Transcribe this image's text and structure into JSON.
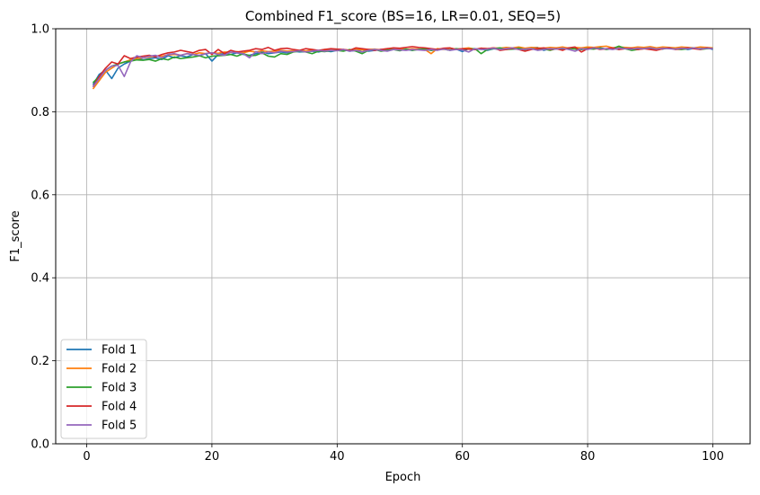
{
  "chart_data": {
    "type": "line",
    "title": "Combined F1_score (BS=16, LR=0.01, SEQ=5)",
    "xlabel": "Epoch",
    "ylabel": "F1_score",
    "xlim": [
      -4.95,
      105.95
    ],
    "ylim": [
      0.0,
      1.0
    ],
    "xticks": [
      0,
      20,
      40,
      60,
      80,
      100
    ],
    "yticks": [
      0.0,
      0.2,
      0.4,
      0.6,
      0.8,
      1.0
    ],
    "xtick_labels": [
      "0",
      "20",
      "40",
      "60",
      "80",
      "100"
    ],
    "ytick_labels": [
      "0.0",
      "0.2",
      "0.4",
      "0.6",
      "0.8",
      "1.0"
    ],
    "grid": true,
    "legend_position": "lower-left",
    "x": [
      1,
      2,
      3,
      4,
      5,
      6,
      7,
      8,
      9,
      10,
      11,
      12,
      13,
      14,
      15,
      16,
      17,
      18,
      19,
      20,
      21,
      22,
      23,
      24,
      25,
      26,
      27,
      28,
      29,
      30,
      31,
      32,
      33,
      34,
      35,
      36,
      37,
      38,
      39,
      40,
      41,
      42,
      43,
      44,
      45,
      46,
      47,
      48,
      49,
      50,
      51,
      52,
      53,
      54,
      55,
      56,
      57,
      58,
      59,
      60,
      61,
      62,
      63,
      64,
      65,
      66,
      67,
      68,
      69,
      70,
      71,
      72,
      73,
      74,
      75,
      76,
      77,
      78,
      79,
      80,
      81,
      82,
      83,
      84,
      85,
      86,
      87,
      88,
      89,
      90,
      91,
      92,
      93,
      94,
      95,
      96,
      97,
      98,
      99,
      100
    ],
    "series": [
      {
        "name": "Fold 1",
        "color": "#1f77b4",
        "values": [
          0.865,
          0.89,
          0.9,
          0.88,
          0.905,
          0.915,
          0.922,
          0.93,
          0.925,
          0.928,
          0.93,
          0.926,
          0.935,
          0.93,
          0.935,
          0.932,
          0.938,
          0.935,
          0.94,
          0.922,
          0.938,
          0.94,
          0.938,
          0.942,
          0.938,
          0.936,
          0.94,
          0.944,
          0.94,
          0.942,
          0.944,
          0.942,
          0.946,
          0.944,
          0.945,
          0.946,
          0.944,
          0.947,
          0.945,
          0.948,
          0.95,
          0.946,
          0.948,
          0.949,
          0.946,
          0.948,
          0.95,
          0.948,
          0.95,
          0.949,
          0.95,
          0.948,
          0.951,
          0.95,
          0.948,
          0.95,
          0.952,
          0.949,
          0.951,
          0.945,
          0.952,
          0.95,
          0.951,
          0.948,
          0.952,
          0.95,
          0.953,
          0.951,
          0.952,
          0.95,
          0.954,
          0.955,
          0.948,
          0.952,
          0.953,
          0.95,
          0.954,
          0.952,
          0.95,
          0.953,
          0.952,
          0.954,
          0.951,
          0.953,
          0.95,
          0.955,
          0.952,
          0.95,
          0.954,
          0.952,
          0.953,
          0.951,
          0.955,
          0.952,
          0.954,
          0.95,
          0.953,
          0.952,
          0.955,
          0.95
        ]
      },
      {
        "name": "Fold 2",
        "color": "#ff7f0e",
        "values": [
          0.855,
          0.875,
          0.895,
          0.905,
          0.915,
          0.92,
          0.925,
          0.928,
          0.93,
          0.932,
          0.935,
          0.934,
          0.937,
          0.938,
          0.936,
          0.94,
          0.938,
          0.942,
          0.94,
          0.942,
          0.941,
          0.944,
          0.943,
          0.945,
          0.942,
          0.946,
          0.944,
          0.947,
          0.945,
          0.946,
          0.948,
          0.946,
          0.947,
          0.948,
          0.946,
          0.949,
          0.947,
          0.95,
          0.948,
          0.949,
          0.95,
          0.948,
          0.951,
          0.949,
          0.95,
          0.951,
          0.949,
          0.952,
          0.95,
          0.951,
          0.95,
          0.952,
          0.951,
          0.95,
          0.94,
          0.952,
          0.95,
          0.953,
          0.951,
          0.952,
          0.954,
          0.951,
          0.953,
          0.952,
          0.954,
          0.953,
          0.955,
          0.954,
          0.956,
          0.953,
          0.955,
          0.954,
          0.953,
          0.955,
          0.954,
          0.956,
          0.953,
          0.955,
          0.954,
          0.956,
          0.955,
          0.957,
          0.958,
          0.954,
          0.956,
          0.955,
          0.954,
          0.956,
          0.955,
          0.957,
          0.954,
          0.956,
          0.955,
          0.954,
          0.956,
          0.955,
          0.954,
          0.956,
          0.955,
          0.954
        ]
      },
      {
        "name": "Fold 3",
        "color": "#2ca02c",
        "values": [
          0.87,
          0.885,
          0.9,
          0.91,
          0.915,
          0.92,
          0.922,
          0.925,
          0.924,
          0.926,
          0.922,
          0.928,
          0.925,
          0.932,
          0.928,
          0.93,
          0.932,
          0.935,
          0.93,
          0.934,
          0.935,
          0.936,
          0.938,
          0.934,
          0.94,
          0.935,
          0.936,
          0.942,
          0.934,
          0.932,
          0.94,
          0.938,
          0.944,
          0.946,
          0.944,
          0.94,
          0.946,
          0.945,
          0.947,
          0.948,
          0.946,
          0.95,
          0.946,
          0.94,
          0.948,
          0.95,
          0.946,
          0.948,
          0.95,
          0.947,
          0.951,
          0.948,
          0.95,
          0.952,
          0.948,
          0.95,
          0.951,
          0.948,
          0.952,
          0.95,
          0.951,
          0.952,
          0.94,
          0.95,
          0.952,
          0.954,
          0.95,
          0.951,
          0.953,
          0.95,
          0.952,
          0.95,
          0.951,
          0.948,
          0.952,
          0.95,
          0.953,
          0.951,
          0.95,
          0.952,
          0.951,
          0.953,
          0.95,
          0.952,
          0.958,
          0.952,
          0.948,
          0.95,
          0.952,
          0.954,
          0.95,
          0.952,
          0.953,
          0.951,
          0.95,
          0.952,
          0.954,
          0.95,
          0.952,
          0.953
        ]
      },
      {
        "name": "Fold 4",
        "color": "#d62728",
        "values": [
          0.86,
          0.885,
          0.905,
          0.92,
          0.915,
          0.935,
          0.928,
          0.932,
          0.934,
          0.936,
          0.932,
          0.938,
          0.942,
          0.944,
          0.948,
          0.945,
          0.942,
          0.948,
          0.95,
          0.938,
          0.95,
          0.94,
          0.948,
          0.944,
          0.946,
          0.948,
          0.952,
          0.95,
          0.955,
          0.948,
          0.952,
          0.953,
          0.95,
          0.948,
          0.952,
          0.95,
          0.948,
          0.95,
          0.952,
          0.951,
          0.95,
          0.948,
          0.954,
          0.952,
          0.95,
          0.948,
          0.95,
          0.952,
          0.954,
          0.953,
          0.955,
          0.957,
          0.955,
          0.954,
          0.952,
          0.95,
          0.953,
          0.954,
          0.95,
          0.952,
          0.951,
          0.95,
          0.953,
          0.952,
          0.954,
          0.948,
          0.95,
          0.953,
          0.95,
          0.946,
          0.95,
          0.952,
          0.954,
          0.95,
          0.952,
          0.948,
          0.954,
          0.956,
          0.944,
          0.952,
          0.954,
          0.95,
          0.952,
          0.954,
          0.95,
          0.952,
          0.953,
          0.95,
          0.952,
          0.95,
          0.948,
          0.952,
          0.954,
          0.95,
          0.952,
          0.954,
          0.952,
          0.95,
          0.954,
          0.952
        ]
      },
      {
        "name": "Fold 5",
        "color": "#9467bd",
        "values": [
          0.86,
          0.88,
          0.9,
          0.91,
          0.912,
          0.885,
          0.92,
          0.935,
          0.93,
          0.934,
          0.936,
          0.93,
          0.938,
          0.94,
          0.936,
          0.94,
          0.938,
          0.936,
          0.94,
          0.942,
          0.938,
          0.936,
          0.944,
          0.942,
          0.94,
          0.93,
          0.945,
          0.94,
          0.944,
          0.942,
          0.946,
          0.944,
          0.945,
          0.947,
          0.944,
          0.946,
          0.948,
          0.946,
          0.948,
          0.947,
          0.95,
          0.946,
          0.948,
          0.944,
          0.948,
          0.95,
          0.948,
          0.946,
          0.95,
          0.949,
          0.948,
          0.95,
          0.949,
          0.948,
          0.95,
          0.948,
          0.951,
          0.948,
          0.95,
          0.949,
          0.944,
          0.952,
          0.95,
          0.951,
          0.953,
          0.95,
          0.952,
          0.954,
          0.95,
          0.951,
          0.952,
          0.948,
          0.95,
          0.952,
          0.951,
          0.953,
          0.95,
          0.946,
          0.952,
          0.95,
          0.954,
          0.951,
          0.952,
          0.95,
          0.953,
          0.952,
          0.951,
          0.953,
          0.952,
          0.954,
          0.951,
          0.953,
          0.952,
          0.951,
          0.953,
          0.952,
          0.954,
          0.951,
          0.953,
          0.952
        ]
      }
    ]
  }
}
